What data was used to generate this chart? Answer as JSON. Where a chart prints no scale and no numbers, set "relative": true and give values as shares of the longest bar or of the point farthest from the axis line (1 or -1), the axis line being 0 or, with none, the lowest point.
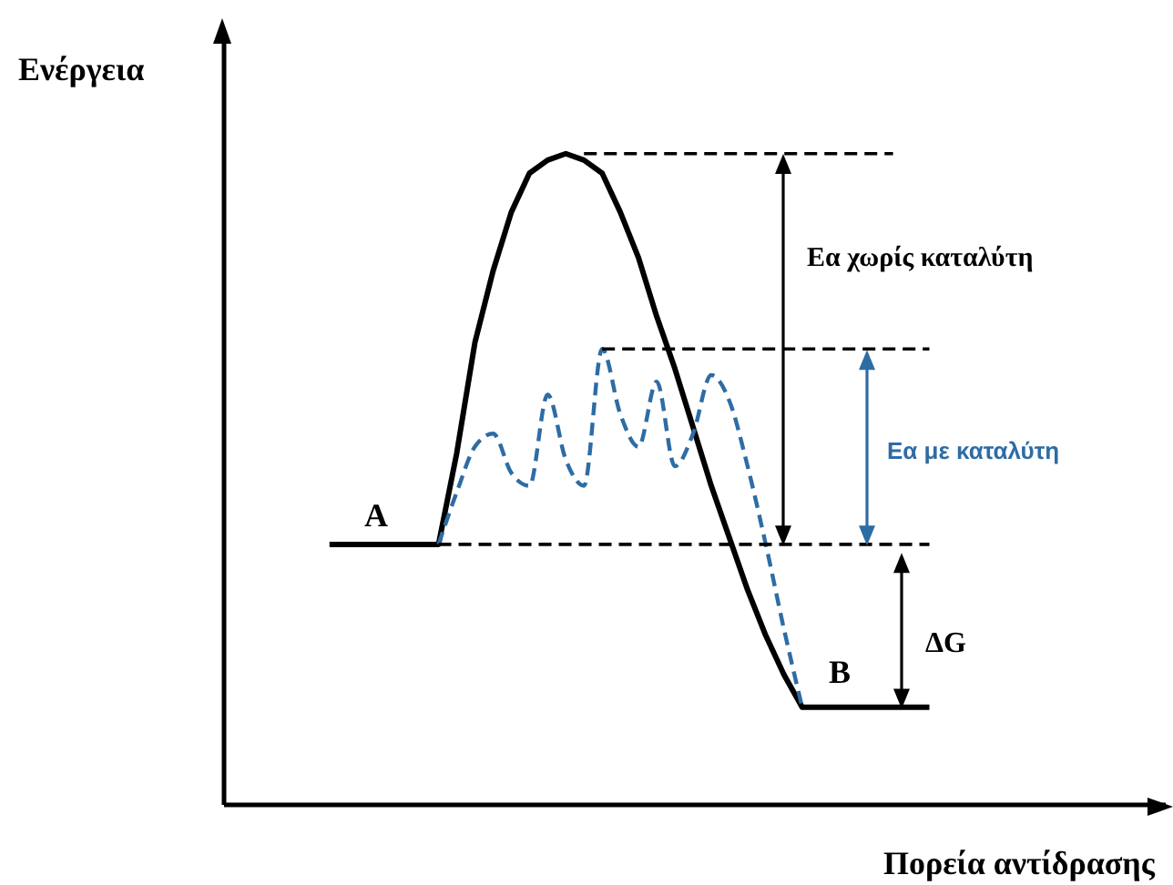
{
  "chart_data": {
    "type": "line",
    "relative": true,
    "xlabel": "Πορεία αντίδρασης",
    "ylabel": "Ενέργεια",
    "categories": [
      null,
      null,
      null,
      null,
      null,
      null,
      null,
      null,
      null,
      null,
      null,
      null,
      null,
      null,
      null,
      null,
      null,
      null,
      null,
      null,
      null,
      null,
      null,
      null,
      null,
      null,
      null,
      null,
      null,
      null,
      null,
      null,
      null,
      null,
      null,
      null,
      null,
      null,
      null,
      null,
      null,
      null,
      null,
      null,
      null,
      null,
      null,
      null,
      null,
      null,
      null
    ],
    "series": [
      {
        "color": "#000000",
        "line_style": "solid",
        "values": [
          null,
          null,
          null,
          null,
          null,
          0.4,
          0.4,
          0.4,
          0.4,
          0.4,
          0.4,
          0.4,
          0.54,
          0.71,
          0.82,
          0.91,
          0.97,
          0.99,
          1,
          0.99,
          0.97,
          0.91,
          0.84,
          0.75,
          0.67,
          0.58,
          0.49,
          0.41,
          0.33,
          0.26,
          0.2,
          0.15,
          0.15,
          0.15,
          0.15,
          0.15,
          0.15,
          0.15,
          0.15,
          null,
          null,
          null,
          null,
          null,
          null,
          null,
          null,
          null,
          null,
          null,
          null
        ]
      },
      {
        "color": "#2e6ca4",
        "line_style": "dashed",
        "values": [
          null,
          null,
          null,
          null,
          null,
          null,
          null,
          null,
          null,
          null,
          null,
          0.4,
          0.48,
          0.55,
          0.57,
          0.51,
          0.49,
          0.63,
          0.53,
          0.49,
          0.7,
          0.6,
          0.55,
          0.65,
          0.52,
          0.57,
          0.66,
          0.62,
          0.52,
          0.4,
          0.27,
          0.15,
          null,
          null,
          null,
          null,
          null,
          null,
          null,
          null,
          null,
          null,
          null,
          null,
          null,
          null,
          null,
          null,
          null,
          null,
          null
        ]
      },
      {
        "color": "#000000",
        "line_style": "dashed",
        "values": [
          null,
          null,
          null,
          null,
          null,
          null,
          null,
          null,
          null,
          null,
          null,
          null,
          null,
          null,
          null,
          null,
          null,
          null,
          null,
          1,
          1,
          1,
          1,
          1,
          1,
          1,
          1,
          1,
          1,
          1,
          1,
          1,
          1,
          1,
          1,
          1,
          1,
          null,
          null,
          null,
          null,
          null,
          null,
          null,
          null,
          null,
          null,
          null,
          null,
          null,
          null
        ]
      },
      {
        "color": "#000000",
        "line_style": "dashed",
        "values": [
          null,
          null,
          null,
          null,
          null,
          null,
          null,
          null,
          null,
          null,
          null,
          null,
          null,
          null,
          null,
          null,
          null,
          null,
          null,
          null,
          0.7,
          0.7,
          0.7,
          0.7,
          0.7,
          0.7,
          0.7,
          0.7,
          0.7,
          0.7,
          0.7,
          0.7,
          0.7,
          0.7,
          0.7,
          0.7,
          0.7,
          0.7,
          0.7,
          null,
          null,
          null,
          null,
          null,
          null,
          null,
          null,
          null,
          null,
          null,
          null
        ]
      },
      {
        "color": "#000000",
        "line_style": "dashed",
        "values": [
          null,
          null,
          null,
          null,
          null,
          null,
          null,
          null,
          null,
          null,
          null,
          0.4,
          0.4,
          0.4,
          0.4,
          0.4,
          0.4,
          0.4,
          0.4,
          0.4,
          0.4,
          0.4,
          0.4,
          0.4,
          0.4,
          0.4,
          0.4,
          0.4,
          0.4,
          0.4,
          0.4,
          0.4,
          0.4,
          0.4,
          0.4,
          0.4,
          0.4,
          0.4,
          0.4,
          null,
          null,
          null,
          null,
          null,
          null,
          null,
          null,
          null,
          null,
          null,
          null
        ]
      }
    ],
    "annotations": [
      "A",
      "B",
      "Εα χωρίς καταλύτη",
      "Εα με καταλύτη",
      "ΔG"
    ]
  }
}
